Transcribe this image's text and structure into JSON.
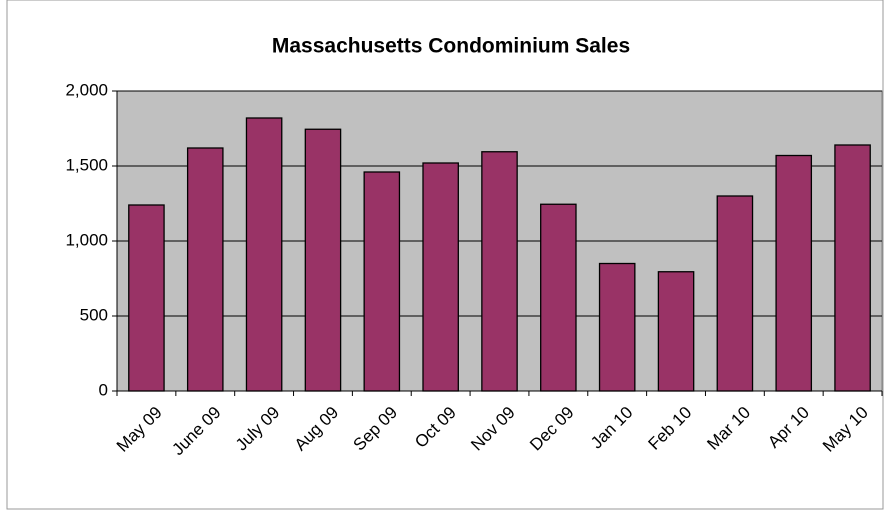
{
  "chart_data": {
    "type": "bar",
    "title": "Massachusetts Condominium Sales",
    "categories": [
      "May 09",
      "June 09",
      "July 09",
      "Aug 09",
      "Sep 09",
      "Oct 09",
      "Nov 09",
      "Dec 09",
      "Jan 10",
      "Feb 10",
      "Mar 10",
      "Apr 10",
      "May 10"
    ],
    "values": [
      1240,
      1620,
      1820,
      1745,
      1460,
      1520,
      1595,
      1245,
      850,
      795,
      1300,
      1570,
      1640
    ],
    "color": "#993366",
    "ylim": [
      0,
      2000
    ],
    "yticks": [
      0,
      500,
      {
        "value": 1000,
        "label": "1,000"
      },
      {
        "value": 1500,
        "label": "1,500"
      },
      {
        "value": 2000,
        "label": "2,000"
      }
    ],
    "grid": true
  }
}
